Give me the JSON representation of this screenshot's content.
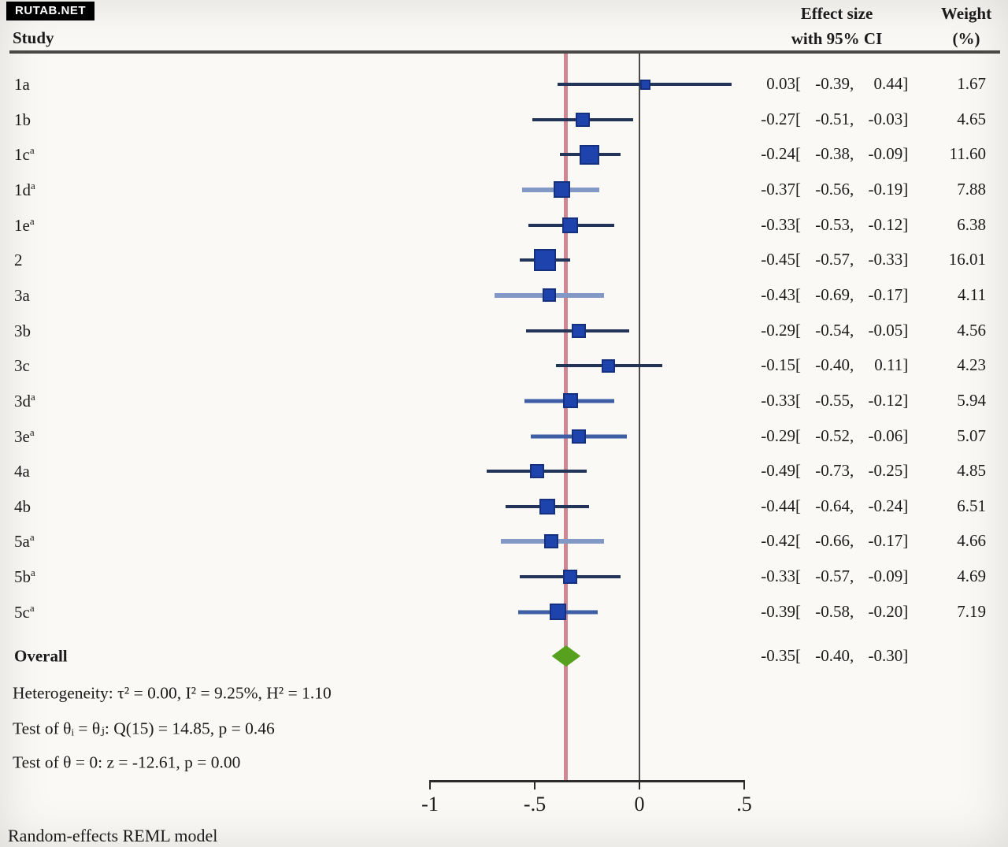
{
  "watermark": "RUTAB.NET",
  "header": {
    "study": "Study",
    "effect_line1": "Effect size",
    "effect_line2": "with 95% CI",
    "weight_line1": "Weight",
    "weight_line2": "(%)"
  },
  "stats": {
    "heterogeneity": "Heterogeneity: τ² = 0.00, I² = 9.25%, H² = 1.10",
    "test_group": "Test of θᵢ = θⱼ: Q(15) = 14.85, p = 0.46",
    "test_zero": "Test of θ = 0: z = -12.61, p = 0.00"
  },
  "footer": "Random-effects REML model",
  "ci_format": {
    "open": "[",
    "sep": ",",
    "close": "]"
  },
  "colors": {
    "marker_fill": "#1e43ad",
    "marker_border": "#14307e",
    "ci_dark": "#223457",
    "ci_medium": "#3e5fa6",
    "ci_light": "#8299c6",
    "reference_line": "#cf8893",
    "zero_line": "#4a4a4a",
    "diamond_fill": "#57a11e",
    "diamond_border": "#3e7c12"
  },
  "chart_data": {
    "type": "forest",
    "xlabel": "",
    "x_range": [
      -1,
      0.5
    ],
    "x_ticks": [
      -1,
      -0.5,
      0,
      0.5
    ],
    "x_tick_labels": [
      "-1",
      "-.5",
      "0",
      ".5"
    ],
    "reference_line": 0,
    "overall_effect_line": -0.35,
    "studies": [
      {
        "label": "1a",
        "sup": "",
        "effect": 0.03,
        "lo": -0.39,
        "hi": 0.44,
        "est_text": "0.03",
        "lo_text": "-0.39",
        "hi_text": "0.44",
        "weight": 1.67,
        "weight_text": "1.67",
        "line_shade": "dark"
      },
      {
        "label": "1b",
        "sup": "",
        "effect": -0.27,
        "lo": -0.51,
        "hi": -0.03,
        "est_text": "-0.27",
        "lo_text": "-0.51",
        "hi_text": "-0.03",
        "weight": 4.65,
        "weight_text": "4.65",
        "line_shade": "dark"
      },
      {
        "label": "1c",
        "sup": "a",
        "effect": -0.24,
        "lo": -0.38,
        "hi": -0.09,
        "est_text": "-0.24",
        "lo_text": "-0.38",
        "hi_text": "-0.09",
        "weight": 11.6,
        "weight_text": "11.60",
        "line_shade": "dark"
      },
      {
        "label": "1d",
        "sup": "a",
        "effect": -0.37,
        "lo": -0.56,
        "hi": -0.19,
        "est_text": "-0.37",
        "lo_text": "-0.56",
        "hi_text": "-0.19",
        "weight": 7.88,
        "weight_text": "7.88",
        "line_shade": "light"
      },
      {
        "label": "1e",
        "sup": "a",
        "effect": -0.33,
        "lo": -0.53,
        "hi": -0.12,
        "est_text": "-0.33",
        "lo_text": "-0.53",
        "hi_text": "-0.12",
        "weight": 6.38,
        "weight_text": "6.38",
        "line_shade": "dark"
      },
      {
        "label": "2",
        "sup": "",
        "effect": -0.45,
        "lo": -0.57,
        "hi": -0.33,
        "est_text": "-0.45",
        "lo_text": "-0.57",
        "hi_text": "-0.33",
        "weight": 16.01,
        "weight_text": "16.01",
        "line_shade": "dark"
      },
      {
        "label": "3a",
        "sup": "",
        "effect": -0.43,
        "lo": -0.69,
        "hi": -0.17,
        "est_text": "-0.43",
        "lo_text": "-0.69",
        "hi_text": "-0.17",
        "weight": 4.11,
        "weight_text": "4.11",
        "line_shade": "light"
      },
      {
        "label": "3b",
        "sup": "",
        "effect": -0.29,
        "lo": -0.54,
        "hi": -0.05,
        "est_text": "-0.29",
        "lo_text": "-0.54",
        "hi_text": "-0.05",
        "weight": 4.56,
        "weight_text": "4.56",
        "line_shade": "dark"
      },
      {
        "label": "3c",
        "sup": "",
        "effect": -0.15,
        "lo": -0.4,
        "hi": 0.11,
        "est_text": "-0.15",
        "lo_text": "-0.40",
        "hi_text": "0.11",
        "weight": 4.23,
        "weight_text": "4.23",
        "line_shade": "dark"
      },
      {
        "label": "3d",
        "sup": "a",
        "effect": -0.33,
        "lo": -0.55,
        "hi": -0.12,
        "est_text": "-0.33",
        "lo_text": "-0.55",
        "hi_text": "-0.12",
        "weight": 5.94,
        "weight_text": "5.94",
        "line_shade": "medium"
      },
      {
        "label": "3e",
        "sup": "a",
        "effect": -0.29,
        "lo": -0.52,
        "hi": -0.06,
        "est_text": "-0.29",
        "lo_text": "-0.52",
        "hi_text": "-0.06",
        "weight": 5.07,
        "weight_text": "5.07",
        "line_shade": "medium"
      },
      {
        "label": "4a",
        "sup": "",
        "effect": -0.49,
        "lo": -0.73,
        "hi": -0.25,
        "est_text": "-0.49",
        "lo_text": "-0.73",
        "hi_text": "-0.25",
        "weight": 4.85,
        "weight_text": "4.85",
        "line_shade": "dark"
      },
      {
        "label": "4b",
        "sup": "",
        "effect": -0.44,
        "lo": -0.64,
        "hi": -0.24,
        "est_text": "-0.44",
        "lo_text": "-0.64",
        "hi_text": "-0.24",
        "weight": 6.51,
        "weight_text": "6.51",
        "line_shade": "dark"
      },
      {
        "label": "5a",
        "sup": "a",
        "effect": -0.42,
        "lo": -0.66,
        "hi": -0.17,
        "est_text": "-0.42",
        "lo_text": "-0.66",
        "hi_text": "-0.17",
        "weight": 4.66,
        "weight_text": "4.66",
        "line_shade": "light"
      },
      {
        "label": "5b",
        "sup": "a",
        "effect": -0.33,
        "lo": -0.57,
        "hi": -0.09,
        "est_text": "-0.33",
        "lo_text": "-0.57",
        "hi_text": "-0.09",
        "weight": 4.69,
        "weight_text": "4.69",
        "line_shade": "dark"
      },
      {
        "label": "5c",
        "sup": "a",
        "effect": -0.39,
        "lo": -0.58,
        "hi": -0.2,
        "est_text": "-0.39",
        "lo_text": "-0.58",
        "hi_text": "-0.20",
        "weight": 7.19,
        "weight_text": "7.19",
        "line_shade": "medium"
      }
    ],
    "overall": {
      "label": "Overall",
      "effect": -0.35,
      "lo": -0.4,
      "hi": -0.3,
      "est_text": "-0.35",
      "lo_text": "-0.40",
      "hi_text": "-0.30"
    }
  }
}
